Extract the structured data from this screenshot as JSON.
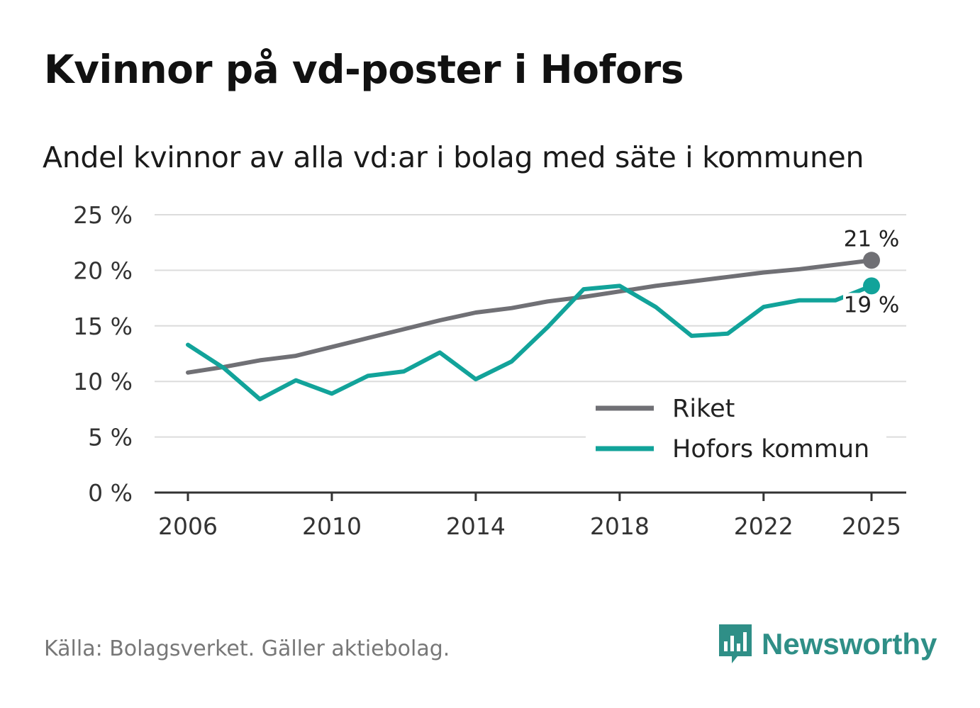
{
  "title": "Kvinnor på vd-poster i Hofors",
  "subtitle": "Andel kvinnor av alla vd:ar i bolag med säte i kommunen",
  "source": "Källa: Bolagsverket. Gäller aktiebolag.",
  "brand": {
    "name": "Newsworthy",
    "color": "#2f8f87",
    "icon": "bar-chart-bubble-icon"
  },
  "chart_data": {
    "type": "line",
    "x": [
      2006,
      2007,
      2008,
      2009,
      2010,
      2011,
      2012,
      2013,
      2014,
      2015,
      2016,
      2017,
      2018,
      2019,
      2020,
      2021,
      2022,
      2023,
      2024,
      2025
    ],
    "series": [
      {
        "name": "Riket",
        "color": "#707075",
        "values": [
          10.8,
          11.3,
          11.9,
          12.3,
          13.1,
          13.9,
          14.7,
          15.5,
          16.2,
          16.6,
          17.2,
          17.6,
          18.1,
          18.6,
          19.0,
          19.4,
          19.8,
          20.1,
          20.5,
          20.9
        ],
        "end_label": "21 %"
      },
      {
        "name": "Hofors kommun",
        "color": "#12a39a",
        "values": [
          13.3,
          11.2,
          8.4,
          10.1,
          8.9,
          10.5,
          10.9,
          12.6,
          10.2,
          11.8,
          14.9,
          18.3,
          18.6,
          16.7,
          14.1,
          14.3,
          16.7,
          17.3,
          17.3,
          18.6
        ],
        "end_label": "19 %"
      }
    ],
    "x_ticks": [
      2006,
      2010,
      2014,
      2018,
      2022,
      2025
    ],
    "x_tick_labels": [
      "2006",
      "2010",
      "2014",
      "2018",
      "2022",
      "2025"
    ],
    "y_ticks": [
      0,
      5,
      10,
      15,
      20,
      25
    ],
    "y_tick_labels": [
      "0 %",
      "5 %",
      "10 %",
      "15 %",
      "20 %",
      "25 %"
    ],
    "ylim": [
      0,
      25
    ],
    "xlabel": "",
    "ylabel": "",
    "grid": true,
    "legend": {
      "placement": "bottom-right",
      "entries": [
        "Riket",
        "Hofors kommun"
      ]
    }
  }
}
